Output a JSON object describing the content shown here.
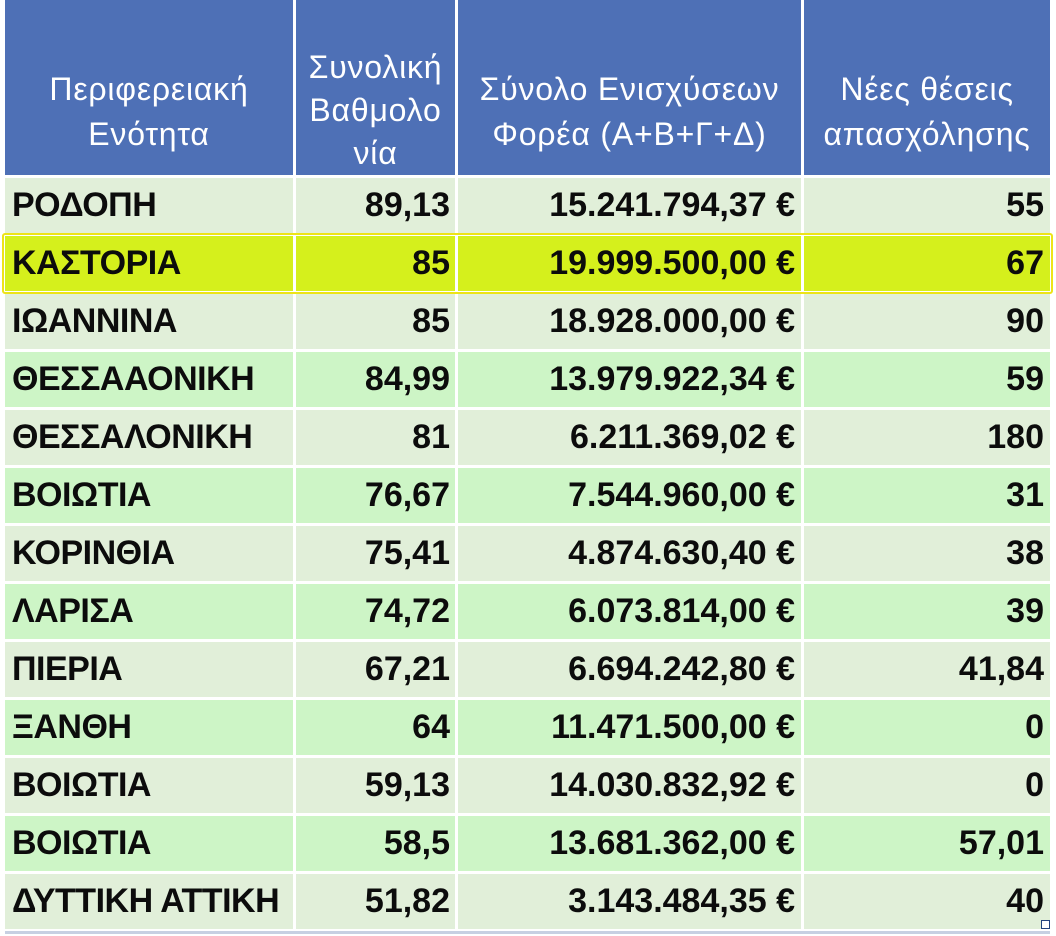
{
  "table": {
    "headers": [
      {
        "lines": [
          "Περιφερειακή",
          "Ενότητα"
        ]
      },
      {
        "lines": [
          "Συνολική",
          "Βαθμολο",
          "νία"
        ]
      },
      {
        "lines": [
          "Σύνολο Ενισχύσεων",
          "Φορέα (Α+Β+Γ+Δ)"
        ]
      },
      {
        "lines": [
          "Νέες θέσεις",
          "απασχόλησης"
        ]
      }
    ],
    "rows": [
      {
        "region": "ΡΟΔΟΠΗ",
        "score": "89,13",
        "funding": "15.241.794,37 €",
        "jobs": "55"
      },
      {
        "region": "ΚΑΣΤΟΡΙΑ",
        "score": "85",
        "funding": "19.999.500,00 €",
        "jobs": "67",
        "highlighted": true
      },
      {
        "region": "ΙΩΑΝΝΙΝΑ",
        "score": "85",
        "funding": "18.928.000,00 €",
        "jobs": "90"
      },
      {
        "region": "ΘΕΣΣΑΑΟΝΙΚΗ",
        "score": "84,99",
        "funding": "13.979.922,34 €",
        "jobs": "59"
      },
      {
        "region": "ΘΕΣΣΑΛΟΝΙΚΗ",
        "score": "81",
        "funding": "6.211.369,02 €",
        "jobs": "180"
      },
      {
        "region": "ΒΟΙΩΤΙΑ",
        "score": "76,67",
        "funding": "7.544.960,00 €",
        "jobs": "31"
      },
      {
        "region": "ΚΟΡΙΝΘΙΑ",
        "score": "75,41",
        "funding": "4.874.630,40 €",
        "jobs": "38"
      },
      {
        "region": "ΛΑΡΙΣΑ",
        "score": "74,72",
        "funding": "6.073.814,00 €",
        "jobs": "39"
      },
      {
        "region": "ΠΙΕΡΙΑ",
        "score": "67,21",
        "funding": "6.694.242,80 €",
        "jobs": "41,84"
      },
      {
        "region": "ΞΑΝΘΗ",
        "score": "64",
        "funding": "11.471.500,00 €",
        "jobs": "0"
      },
      {
        "region": "ΒΟΙΩΤΙΑ",
        "score": "59,13",
        "funding": "14.030.832,92 €",
        "jobs": "0"
      },
      {
        "region": "ΒΟΙΩΤΙΑ",
        "score": "58,5",
        "funding": "13.681.362,00 €",
        "jobs": "57,01"
      },
      {
        "region": "ΔΥΤΤΙΚΗ ΑΤΤΙΚΗ",
        "score": "51,82",
        "funding": "3.143.484,35 €",
        "jobs": "40"
      }
    ]
  },
  "colors": {
    "header_background": "#4e70b6",
    "header_text": "#ffffff",
    "row_light": "#e1efd9",
    "row_green": "#cdf5c6",
    "highlight_fill": "#d5f01c",
    "highlight_outline": "#ede417",
    "body_text": "#0c0c0c"
  }
}
